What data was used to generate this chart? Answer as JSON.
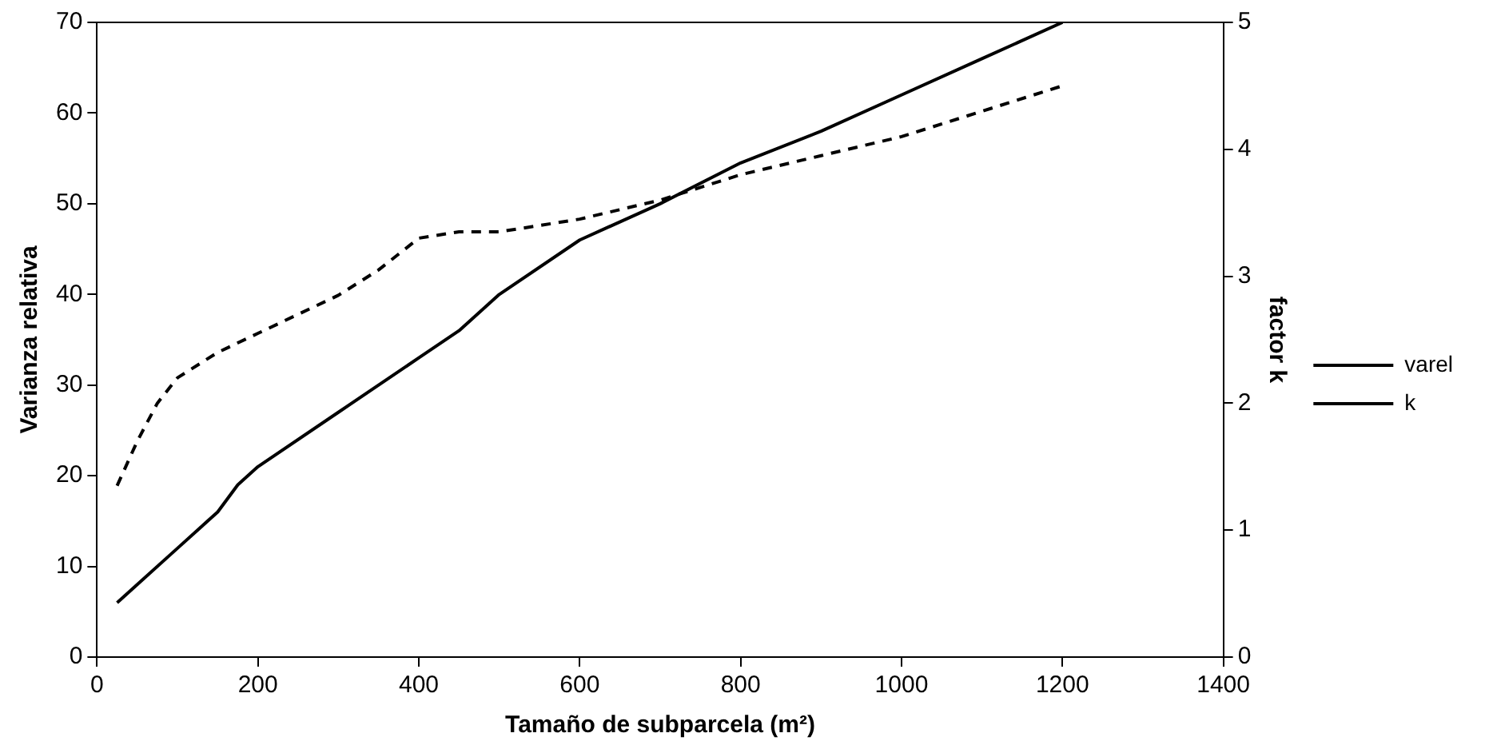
{
  "chart_data": {
    "type": "line",
    "xlabel": "Tamaño de subparcela (m²)",
    "ylabel": "Varianza relativa",
    "y2label": "factor k",
    "xlim": [
      0,
      1400
    ],
    "xticks": [
      0,
      200,
      400,
      600,
      800,
      1000,
      1200,
      1400
    ],
    "ylim": [
      0,
      70
    ],
    "yticks": [
      0,
      10,
      20,
      30,
      40,
      50,
      60,
      70
    ],
    "y2lim": [
      0,
      5
    ],
    "y2ticks": [
      0,
      1,
      2,
      3,
      4,
      5
    ],
    "grid": false,
    "legend": "right",
    "marker": "none",
    "series": [
      {
        "name": "varel",
        "color": "#000000",
        "line_style": "solid",
        "x": [
          25,
          50,
          100,
          150,
          175,
          200,
          300,
          400,
          450,
          500,
          600,
          700,
          800,
          900,
          1000,
          1100,
          1200
        ],
        "values": [
          6,
          8,
          12,
          16,
          19,
          21,
          27,
          33,
          36,
          40,
          46,
          50,
          54.5,
          58,
          62,
          66,
          70
        ]
      },
      {
        "name": "k",
        "color": "#000000",
        "line_style": "dashed",
        "axis": "y2",
        "x": [
          25,
          50,
          75,
          100,
          150,
          200,
          300,
          350,
          400,
          450,
          500,
          600,
          700,
          800,
          900,
          1000,
          1100,
          1200
        ],
        "values": [
          1.35,
          1.7,
          2.0,
          2.2,
          2.4,
          2.55,
          2.85,
          3.05,
          3.3,
          3.35,
          3.35,
          3.45,
          3.6,
          3.8,
          3.95,
          4.1,
          4.3,
          4.5
        ]
      }
    ]
  }
}
